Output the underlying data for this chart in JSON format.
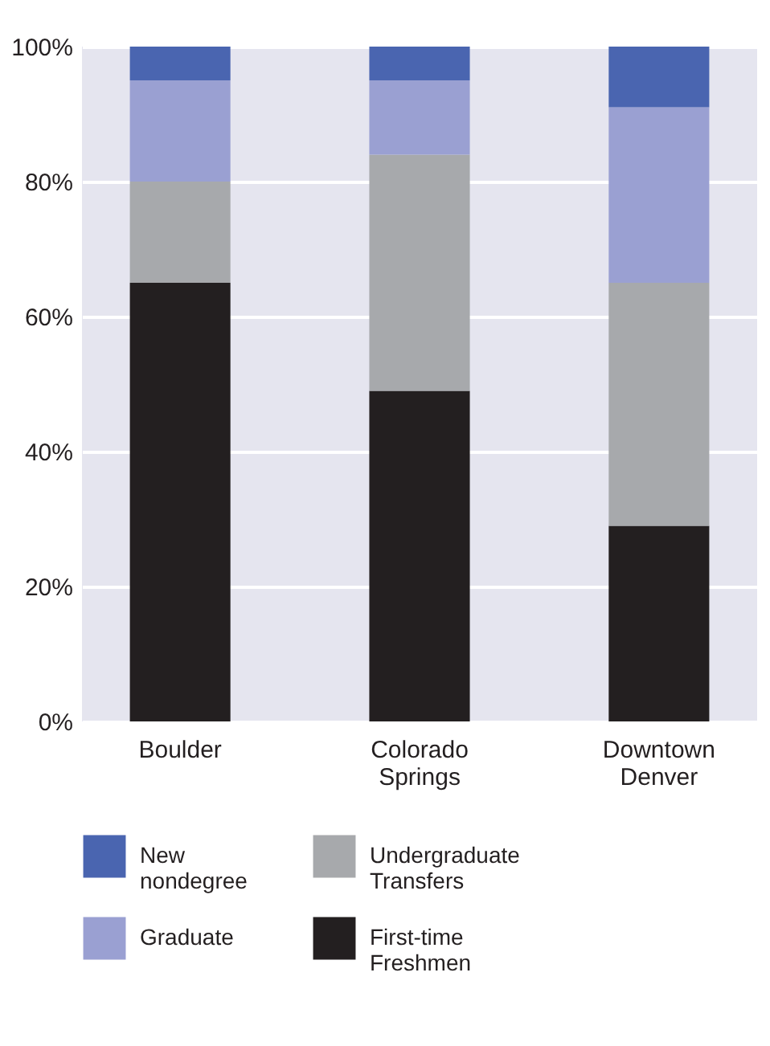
{
  "chart_data": {
    "type": "bar",
    "stacked": true,
    "categories": [
      "Boulder",
      "Colorado Springs",
      "Downtown Denver"
    ],
    "series": [
      {
        "name": "First-time Freshmen",
        "color": "#231f20",
        "values": [
          65,
          49,
          29
        ]
      },
      {
        "name": "Undergraduate Transfers",
        "color": "#a7a9ac",
        "values": [
          15,
          35,
          36
        ]
      },
      {
        "name": "Graduate",
        "color": "#9aa0d2",
        "values": [
          15,
          11,
          26
        ]
      },
      {
        "name": "New nondegree",
        "color": "#4a65b0",
        "values": [
          5,
          5,
          9
        ]
      }
    ],
    "ylim": [
      0,
      100
    ],
    "yticks": [
      {
        "value": 0,
        "label": "0%"
      },
      {
        "value": 20,
        "label": "20%"
      },
      {
        "value": 40,
        "label": "40%"
      },
      {
        "value": 60,
        "label": "60%"
      },
      {
        "value": 80,
        "label": "80%"
      },
      {
        "value": 100,
        "label": "100%"
      }
    ],
    "grid": "y",
    "legend": "bottom"
  }
}
